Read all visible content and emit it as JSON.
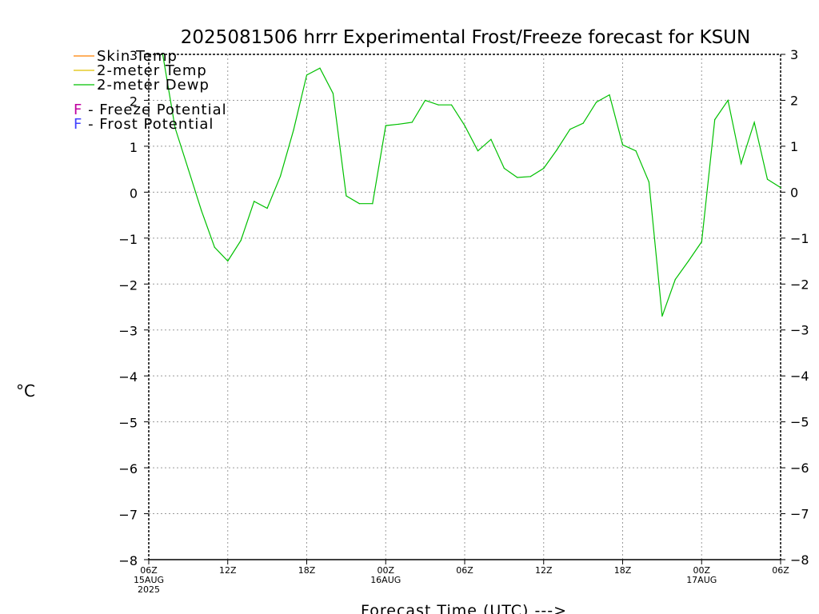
{
  "chart_data": {
    "type": "line",
    "title": "2025081506 hrrr Experimental Frost/Freeze forecast for KSUN",
    "ylabel": "°C",
    "xlabel": "Forecast Time (UTC) --->",
    "ylim": [
      -8,
      3
    ],
    "xlim": [
      0,
      48
    ],
    "grid": true,
    "yticks": [
      3,
      2,
      1,
      0,
      -1,
      -2,
      -3,
      -4,
      -5,
      -6,
      -7,
      -8
    ],
    "ytick_labels": [
      "3",
      "2",
      "1",
      "0",
      "−1",
      "−2",
      "−3",
      "−4",
      "−5",
      "−6",
      "−7",
      "−8"
    ],
    "xticks": [
      {
        "x": 0,
        "lines": [
          "06Z",
          "15AUG",
          "2025"
        ]
      },
      {
        "x": 6,
        "lines": [
          "12Z"
        ]
      },
      {
        "x": 12,
        "lines": [
          "18Z"
        ]
      },
      {
        "x": 18,
        "lines": [
          "00Z",
          "16AUG"
        ]
      },
      {
        "x": 24,
        "lines": [
          "06Z"
        ]
      },
      {
        "x": 30,
        "lines": [
          "12Z"
        ]
      },
      {
        "x": 36,
        "lines": [
          "18Z"
        ]
      },
      {
        "x": 42,
        "lines": [
          "00Z",
          "17AUG"
        ]
      },
      {
        "x": 48,
        "lines": [
          "06Z"
        ]
      }
    ],
    "legend": {
      "placement": "top-left",
      "entries": [
        {
          "name": "Skin Temp",
          "color": "#ff8000"
        },
        {
          "name": "2-meter Temp",
          "color": "#e0c000"
        },
        {
          "name": "2-meter Dewp",
          "color": "#00c000"
        }
      ],
      "symbols": [
        {
          "symbol": "F",
          "text": " - Freeze Potential",
          "color": "#c000a0"
        },
        {
          "symbol": "F",
          "text": " - Frost Potential",
          "color": "#4040ff"
        }
      ]
    },
    "series": [
      {
        "name": "2-meter Dewp",
        "color": "#00c000",
        "x": [
          0,
          1,
          2,
          3,
          4,
          5,
          6,
          7,
          8,
          9,
          10,
          11,
          12,
          13,
          14,
          15,
          16,
          17,
          18,
          19,
          20,
          21,
          22,
          23,
          24,
          25,
          26,
          27,
          28,
          29,
          30,
          31,
          32,
          33,
          34,
          35,
          36,
          37,
          38,
          39,
          40,
          41,
          42,
          43,
          44,
          45,
          46,
          47,
          48
        ],
        "values": [
          3.4,
          3.1,
          1.4,
          0.5,
          -0.4,
          -1.2,
          -1.5,
          -1.05,
          -0.2,
          -0.35,
          0.35,
          1.35,
          2.55,
          2.7,
          2.15,
          -0.08,
          -0.25,
          -0.25,
          1.45,
          1.48,
          1.52,
          2.0,
          1.9,
          1.9,
          1.45,
          0.9,
          1.15,
          0.52,
          0.32,
          0.34,
          0.52,
          0.92,
          1.37,
          1.5,
          1.96,
          2.12,
          1.03,
          0.9,
          0.22,
          -2.7,
          -1.9,
          -1.5,
          -1.08,
          1.58,
          2.0,
          0.62,
          1.52,
          0.28,
          0.1
        ]
      }
    ]
  }
}
